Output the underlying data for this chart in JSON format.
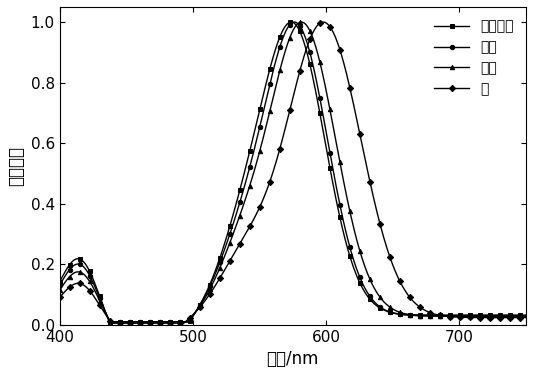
{
  "x_min": 400,
  "x_max": 750,
  "y_min": 0.0,
  "y_max": 1.05,
  "xlabel": "波长/nm",
  "ylabel": "吸收强度",
  "xticks": [
    400,
    500,
    600,
    700
  ],
  "yticks": [
    0.0,
    0.2,
    0.4,
    0.6,
    0.8,
    1.0
  ],
  "legend_labels": [
    "二氯甲烷",
    "乙腺",
    "乙醇",
    "水"
  ],
  "markers": [
    "s",
    "o",
    "^",
    "D"
  ],
  "color": "#000000",
  "figsize": [
    5.33,
    3.75
  ],
  "dpi": 100,
  "font_size": 11,
  "legend_font_size": 10,
  "axis_font_size": 12
}
